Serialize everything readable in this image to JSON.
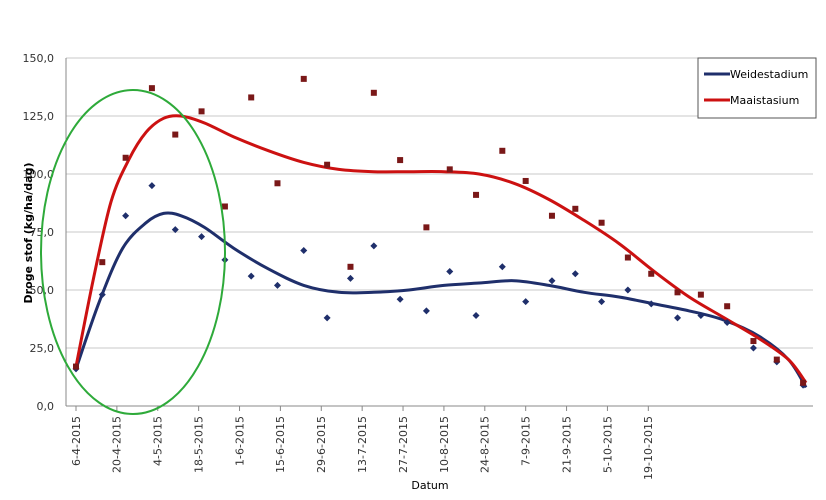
{
  "chart_data": {
    "type": "scatter",
    "xlabel": "Datum",
    "ylabel": "Droge stof (kg/ha/dag)",
    "ylim": [
      0,
      150
    ],
    "yticks": [
      "0,0",
      "25,0",
      "50,0",
      "75,0",
      "100,0",
      "125,0",
      "150,0"
    ],
    "xticks": [
      "6-4-2015",
      "20-4-2015",
      "4-5-2015",
      "18-5-2015",
      "1-6-2015",
      "15-6-2015",
      "29-6-2015",
      "13-7-2015",
      "27-7-2015",
      "10-8-2015",
      "24-8-2015",
      "7-9-2015",
      "21-9-2015",
      "5-10-2015",
      "19-10-2015"
    ],
    "xrange_days": [
      -4,
      205
    ],
    "grid": "horizontal",
    "legend_position": "top-right",
    "series": [
      {
        "name": "Weidestadium",
        "color": "#1f2f6b",
        "marker": "diamond",
        "points": [
          [
            0,
            16
          ],
          [
            9,
            48
          ],
          [
            17,
            82
          ],
          [
            26,
            95
          ],
          [
            34,
            76
          ],
          [
            43,
            73
          ],
          [
            51,
            63
          ],
          [
            60,
            56
          ],
          [
            69,
            52
          ],
          [
            78,
            67
          ],
          [
            86,
            38
          ],
          [
            94,
            55
          ],
          [
            102,
            69
          ],
          [
            111,
            46
          ],
          [
            120,
            41
          ],
          [
            128,
            58
          ],
          [
            137,
            39
          ],
          [
            146,
            60
          ],
          [
            154,
            45
          ],
          [
            163,
            54
          ],
          [
            171,
            57
          ],
          [
            180,
            45
          ],
          [
            189,
            50
          ],
          [
            197,
            44
          ],
          [
            206,
            38
          ],
          [
            214,
            39
          ],
          [
            223,
            36
          ],
          [
            232,
            25
          ],
          [
            240,
            19
          ],
          [
            249,
            9
          ]
        ],
        "trend": [
          [
            0,
            16
          ],
          [
            8,
            45
          ],
          [
            16,
            68
          ],
          [
            24,
            79
          ],
          [
            30,
            83
          ],
          [
            36,
            82
          ],
          [
            44,
            77
          ],
          [
            54,
            68
          ],
          [
            66,
            59
          ],
          [
            78,
            52
          ],
          [
            90,
            49
          ],
          [
            102,
            49
          ],
          [
            114,
            50
          ],
          [
            126,
            52
          ],
          [
            138,
            53
          ],
          [
            150,
            54
          ],
          [
            162,
            52
          ],
          [
            174,
            49
          ],
          [
            186,
            47
          ],
          [
            198,
            44
          ],
          [
            210,
            41
          ],
          [
            222,
            37
          ],
          [
            234,
            30
          ],
          [
            244,
            20
          ],
          [
            250,
            8
          ]
        ]
      },
      {
        "name": "Maaistasium",
        "color": "#cc1111",
        "marker": "square",
        "points": [
          [
            0,
            17
          ],
          [
            9,
            62
          ],
          [
            17,
            107
          ],
          [
            26,
            137
          ],
          [
            34,
            117
          ],
          [
            43,
            127
          ],
          [
            51,
            86
          ],
          [
            60,
            133
          ],
          [
            69,
            96
          ],
          [
            78,
            141
          ],
          [
            86,
            104
          ],
          [
            94,
            60
          ],
          [
            102,
            135
          ],
          [
            111,
            106
          ],
          [
            120,
            77
          ],
          [
            128,
            102
          ],
          [
            137,
            91
          ],
          [
            146,
            110
          ],
          [
            154,
            97
          ],
          [
            163,
            82
          ],
          [
            171,
            85
          ],
          [
            180,
            79
          ],
          [
            189,
            64
          ],
          [
            197,
            57
          ],
          [
            206,
            49
          ],
          [
            214,
            48
          ],
          [
            223,
            43
          ],
          [
            232,
            28
          ],
          [
            240,
            20
          ],
          [
            249,
            10
          ]
        ],
        "trend": [
          [
            0,
            17
          ],
          [
            6,
            55
          ],
          [
            12,
            88
          ],
          [
            18,
            106
          ],
          [
            24,
            118
          ],
          [
            30,
            124
          ],
          [
            36,
            125
          ],
          [
            44,
            122
          ],
          [
            54,
            116
          ],
          [
            66,
            110
          ],
          [
            78,
            105
          ],
          [
            90,
            102
          ],
          [
            102,
            101
          ],
          [
            114,
            101
          ],
          [
            126,
            101
          ],
          [
            138,
            100
          ],
          [
            150,
            96
          ],
          [
            162,
            89
          ],
          [
            174,
            80
          ],
          [
            186,
            70
          ],
          [
            198,
            58
          ],
          [
            210,
            47
          ],
          [
            222,
            38
          ],
          [
            234,
            29
          ],
          [
            244,
            20
          ],
          [
            250,
            10
          ]
        ]
      }
    ]
  }
}
